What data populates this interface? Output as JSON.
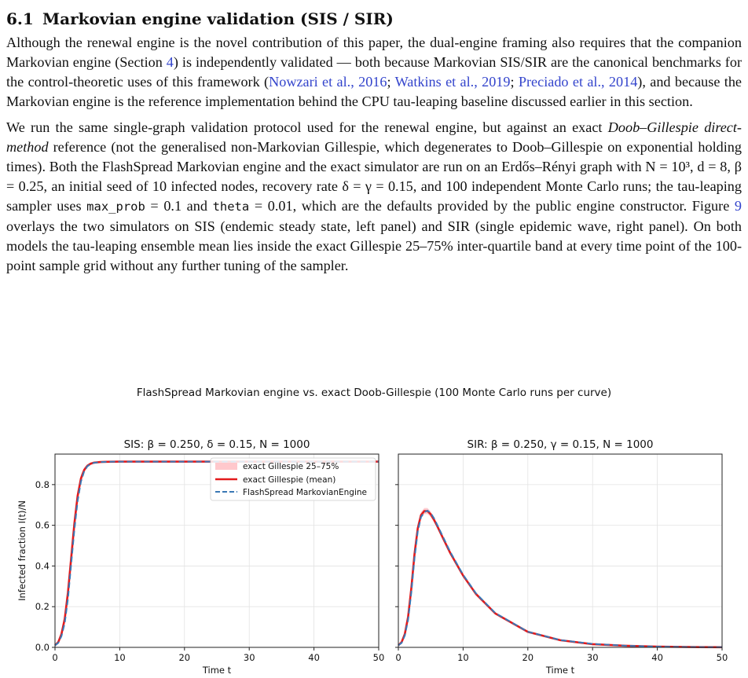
{
  "section": {
    "number": "6.1",
    "title": "Markovian engine validation (SIS / SIR)"
  },
  "paragraph1": {
    "t1": "Although the renewal engine is the novel contribution of this paper, the dual-engine framing also requires that the companion Markovian engine (Section ",
    "ref_section": "4",
    "t2": ") is independently validated — both because Markovian SIS/SIR are the canonical benchmarks for the control-theoretic uses of this framework (",
    "cite1": "Nowzari et al., 2016",
    "sep1": "; ",
    "cite2": "Watkins et al., 2019",
    "sep2": "; ",
    "cite3": "Preciado et al., 2014",
    "t3": "), and because the Markovian engine is the reference implementation behind the CPU tau-leaping baseline discussed earlier in this section."
  },
  "paragraph2": {
    "t1": "We run the same single-graph validation protocol used for the renewal engine, but against an exact ",
    "em1": "Doob–Gillespie direct-method",
    "t2": " reference (not the generalised non-Markovian Gillespie, which degenerates to Doob–Gillespie on exponential holding times). Both the FlashSpread Markovian engine and the exact simulator are run on an Erdős–Rényi graph with N = 10³, d = 8, β = 0.25, an initial seed of 10 infected nodes, recovery rate δ = γ = 0.15, and 100 independent Monte Carlo runs; the tau-leaping sampler uses ",
    "code1": "max_prob",
    "t3": " = 0.1 and ",
    "code2": "theta",
    "t4": " = 0.01, which are the defaults provided by the public engine constructor. Figure ",
    "ref_fig": "9",
    "t5": " overlays the two simulators on SIS (endemic steady state, left panel) and SIR (single epidemic wave, right panel). On both models the tau-leaping ensemble mean lies inside the exact Gillespie 25–75% inter-quartile band at every time point of the 100-point sample grid without any further tuning of the sampler."
  },
  "figure": {
    "suptitle": "FlashSpread Markovian engine vs. exact Doob-Gillespie (100 Monte Carlo runs per curve)",
    "legend": {
      "band": "exact Gillespie 25–75%",
      "mean": "exact Gillespie (mean)",
      "flash": "FlashSpread MarkovianEngine"
    },
    "colors": {
      "band": "#ffc8cc",
      "mean": "#e31a1c",
      "flash": "#3a78b5"
    }
  },
  "chart_data": [
    {
      "type": "line",
      "title": "SIS:  β = 0.250,  δ  = 0.15,  N = 1000",
      "xlabel": "Time t",
      "ylabel": "Infected fraction I(t)/N",
      "xlim": [
        0,
        50
      ],
      "ylim": [
        0,
        0.95
      ],
      "xticks": [
        "0",
        "10",
        "20",
        "30",
        "40",
        "50"
      ],
      "yticks": [
        "0.0",
        "0.2",
        "0.4",
        "0.6",
        "0.8"
      ],
      "grid": true,
      "legend_position": "top-right",
      "x": [
        0,
        0.5,
        1,
        1.5,
        2,
        2.5,
        3,
        3.5,
        4,
        4.5,
        5,
        5.5,
        6,
        7,
        8,
        10,
        15,
        20,
        30,
        40,
        50
      ],
      "series": [
        {
          "name": "exact Gillespie 25–75%",
          "kind": "band",
          "lower": [
            0.006,
            0.018,
            0.05,
            0.11,
            0.22,
            0.38,
            0.55,
            0.7,
            0.8,
            0.857,
            0.884,
            0.896,
            0.902,
            0.907,
            0.909,
            0.91,
            0.91,
            0.91,
            0.91,
            0.91,
            0.91
          ],
          "upper": [
            0.014,
            0.034,
            0.08,
            0.17,
            0.31,
            0.48,
            0.65,
            0.77,
            0.848,
            0.884,
            0.9,
            0.908,
            0.912,
            0.914,
            0.915,
            0.916,
            0.916,
            0.916,
            0.916,
            0.916,
            0.916
          ]
        },
        {
          "name": "exact Gillespie (mean)",
          "kind": "line",
          "values": [
            0.01,
            0.025,
            0.065,
            0.14,
            0.27,
            0.44,
            0.61,
            0.745,
            0.83,
            0.872,
            0.893,
            0.903,
            0.908,
            0.911,
            0.912,
            0.913,
            0.913,
            0.913,
            0.913,
            0.913,
            0.913
          ]
        },
        {
          "name": "FlashSpread MarkovianEngine",
          "kind": "dashed",
          "values": [
            0.01,
            0.022,
            0.055,
            0.12,
            0.24,
            0.41,
            0.58,
            0.72,
            0.815,
            0.865,
            0.89,
            0.901,
            0.907,
            0.911,
            0.912,
            0.913,
            0.913,
            0.913,
            0.913,
            0.913,
            0.913
          ]
        }
      ]
    },
    {
      "type": "line",
      "title": "SIR:  β = 0.250,  γ  = 0.15,  N = 1000",
      "xlabel": "Time t",
      "ylabel": "",
      "xlim": [
        0,
        50
      ],
      "ylim": [
        0,
        0.95
      ],
      "xticks": [
        "0",
        "10",
        "20",
        "30",
        "40",
        "50"
      ],
      "yticks": [],
      "grid": true,
      "x": [
        0,
        0.5,
        1,
        1.5,
        2,
        2.5,
        3,
        3.5,
        4,
        4.5,
        5,
        5.5,
        6,
        7,
        8,
        10,
        12,
        15,
        20,
        25,
        30,
        35,
        40,
        45,
        50
      ],
      "series": [
        {
          "name": "exact Gillespie 25–75%",
          "kind": "band",
          "lower": [
            0.006,
            0.018,
            0.05,
            0.12,
            0.25,
            0.42,
            0.56,
            0.635,
            0.655,
            0.655,
            0.64,
            0.615,
            0.585,
            0.52,
            0.455,
            0.345,
            0.255,
            0.16,
            0.073,
            0.033,
            0.015,
            0.007,
            0.003,
            0.0015,
            0.0007
          ],
          "upper": [
            0.014,
            0.034,
            0.085,
            0.18,
            0.33,
            0.5,
            0.61,
            0.665,
            0.685,
            0.685,
            0.668,
            0.64,
            0.608,
            0.54,
            0.475,
            0.362,
            0.27,
            0.172,
            0.08,
            0.038,
            0.018,
            0.009,
            0.004,
            0.002,
            0.001
          ]
        },
        {
          "name": "exact Gillespie (mean)",
          "kind": "line",
          "values": [
            0.01,
            0.025,
            0.065,
            0.15,
            0.29,
            0.46,
            0.585,
            0.65,
            0.67,
            0.67,
            0.654,
            0.628,
            0.597,
            0.53,
            0.465,
            0.353,
            0.262,
            0.166,
            0.076,
            0.035,
            0.016,
            0.008,
            0.0035,
            0.0017,
            0.0008
          ]
        },
        {
          "name": "FlashSpread MarkovianEngine",
          "kind": "dashed",
          "values": [
            0.01,
            0.022,
            0.058,
            0.135,
            0.27,
            0.44,
            0.57,
            0.64,
            0.665,
            0.672,
            0.66,
            0.635,
            0.603,
            0.536,
            0.47,
            0.357,
            0.265,
            0.168,
            0.077,
            0.036,
            0.017,
            0.008,
            0.0036,
            0.0017,
            0.0008
          ]
        }
      ]
    }
  ]
}
